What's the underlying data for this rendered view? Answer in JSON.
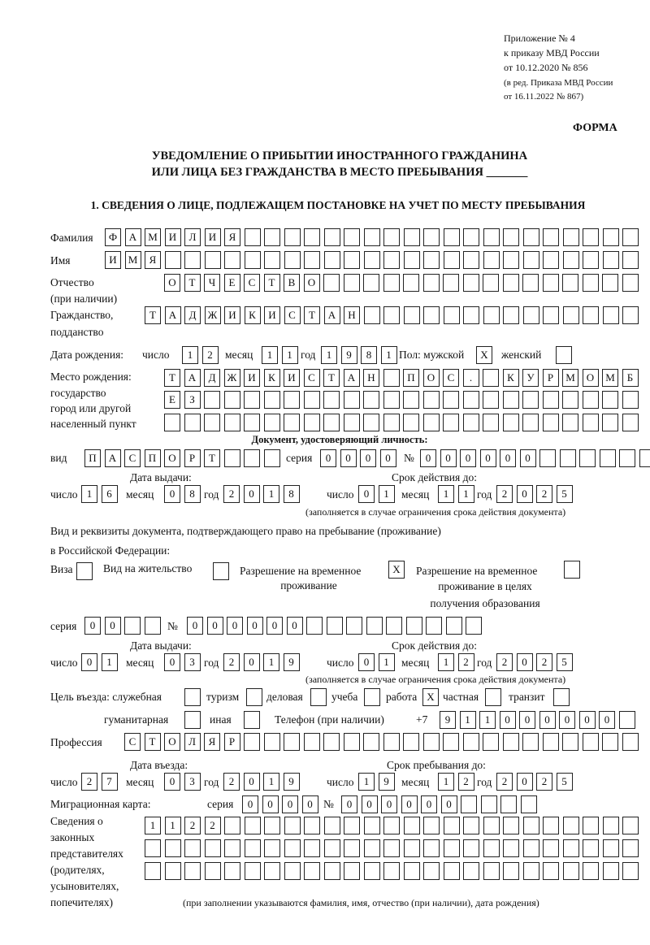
{
  "header": {
    "appendix": "Приложение № 4",
    "order": "к приказу МВД России",
    "order_date": "от 10.12.2020 № 856",
    "edition1": "(в ред. Приказа МВД России",
    "edition2": "от 16.11.2022 № 867)",
    "form_label": "ФОРМА",
    "title1": "УВЕДОМЛЕНИЕ О ПРИБЫТИИ ИНОСТРАННОГО ГРАЖДАНИНА",
    "title2": "ИЛИ ЛИЦА БЕЗ ГРАЖДАНСТВА В МЕСТО ПРЕБЫВАНИЯ _______",
    "section1": "1. СВЕДЕНИЯ О ЛИЦЕ, ПОДЛЕЖАЩЕМ ПОСТАНОВКЕ НА УЧЕТ ПО МЕСТУ ПРЕБЫВАНИЯ"
  },
  "person": {
    "surname": {
      "label": "Фамилия",
      "chars": [
        "Ф",
        "А",
        "М",
        "И",
        "Л",
        "И",
        "Я",
        "",
        "",
        "",
        "",
        "",
        "",
        "",
        "",
        "",
        "",
        "",
        "",
        "",
        "",
        "",
        "",
        "",
        "",
        "",
        ""
      ]
    },
    "name": {
      "label": "Имя",
      "chars": [
        "И",
        "М",
        "Я",
        "",
        "",
        "",
        "",
        "",
        "",
        "",
        "",
        "",
        "",
        "",
        "",
        "",
        "",
        "",
        "",
        "",
        "",
        "",
        "",
        "",
        "",
        "",
        ""
      ]
    },
    "patronymic": {
      "label1": "Отчество",
      "label2": "(при наличии)",
      "chars": [
        "О",
        "Т",
        "Ч",
        "Е",
        "С",
        "Т",
        "В",
        "О",
        "",
        "",
        "",
        "",
        "",
        "",
        "",
        "",
        "",
        "",
        "",
        "",
        "",
        "",
        "",
        ""
      ]
    },
    "citizenship": {
      "label1": "Гражданство,",
      "label2": "подданство",
      "chars": [
        "Т",
        "А",
        "Д",
        "Ж",
        "И",
        "К",
        "И",
        "С",
        "Т",
        "А",
        "Н",
        "",
        "",
        "",
        "",
        "",
        "",
        "",
        "",
        "",
        "",
        "",
        "",
        "",
        ""
      ]
    },
    "birth": {
      "label": "Дата рождения:",
      "day_label": "число",
      "day": [
        "1",
        "2"
      ],
      "month_label": "месяц",
      "month": [
        "1",
        "1"
      ],
      "year_label": "год",
      "year": [
        "1",
        "9",
        "8",
        "1"
      ],
      "sex_label": "Пол: мужской",
      "male": [
        "X"
      ],
      "female_label": "женский",
      "female": [
        ""
      ]
    },
    "birthplace": {
      "label1": "Место рождения:",
      "label2": "государство",
      "label3": "город или другой",
      "label4": "населенный пункт",
      "row1": [
        "Т",
        "А",
        "Д",
        "Ж",
        "И",
        "К",
        "И",
        "С",
        "Т",
        "А",
        "Н",
        "",
        "П",
        "О",
        "С",
        ".",
        "",
        "К",
        "У",
        "Р",
        "М",
        "О",
        "М",
        "Б"
      ],
      "row2": [
        "Е",
        "З",
        "",
        "",
        "",
        "",
        "",
        "",
        "",
        "",
        "",
        "",
        "",
        "",
        "",
        "",
        "",
        "",
        "",
        "",
        "",
        "",
        "",
        ""
      ],
      "row3": [
        "",
        "",
        "",
        "",
        "",
        "",
        "",
        "",
        "",
        "",
        "",
        "",
        "",
        "",
        "",
        "",
        "",
        "",
        "",
        "",
        "",
        "",
        "",
        ""
      ]
    }
  },
  "id_doc": {
    "title": "Документ, удостоверяющий личность:",
    "kind_label": "вид",
    "kind": [
      "П",
      "А",
      "С",
      "П",
      "О",
      "Р",
      "Т",
      "",
      "",
      ""
    ],
    "series_label": "серия",
    "series": [
      "0",
      "0",
      "0",
      "0"
    ],
    "number_label": "№",
    "number": [
      "0",
      "0",
      "0",
      "0",
      "0",
      "0",
      "",
      "",
      "",
      "",
      "",
      ""
    ],
    "issue_label": "Дата выдачи:",
    "valid_label": "Срок действия до:",
    "day_label": "число",
    "month_label": "месяц",
    "year_label": "год",
    "issue_day": [
      "1",
      "6"
    ],
    "issue_month": [
      "0",
      "8"
    ],
    "issue_year": [
      "2",
      "0",
      "1",
      "8"
    ],
    "valid_day": [
      "0",
      "1"
    ],
    "valid_month": [
      "1",
      "1"
    ],
    "valid_year": [
      "2",
      "0",
      "2",
      "5"
    ],
    "note": "(заполняется в случае ограничения срока действия документа)"
  },
  "stay_doc": {
    "title1": "Вид и реквизиты документа, подтверждающего право на пребывание (проживание)",
    "title2": "в Российской Федерации:",
    "visa_label": "Виза",
    "visa": [
      ""
    ],
    "residence_label": "Вид на жительство",
    "residence": [
      ""
    ],
    "temp_label1": "Разрешение на временное",
    "temp_label2": "проживание",
    "temp": [
      "X"
    ],
    "edu_label1": "Разрешение на временное",
    "edu_label2": "проживание в целях",
    "edu_label3": "получения образования",
    "edu": [
      ""
    ],
    "series_label": "серия",
    "series": [
      "0",
      "0",
      "",
      ""
    ],
    "number_label": "№",
    "number": [
      "0",
      "0",
      "0",
      "0",
      "0",
      "0",
      "",
      "",
      "",
      "",
      "",
      "",
      "",
      "",
      ""
    ],
    "issue_label": "Дата выдачи:",
    "valid_label": "Срок действия до:",
    "day_label": "число",
    "month_label": "месяц",
    "year_label": "год",
    "issue_day": [
      "0",
      "1"
    ],
    "issue_month": [
      "0",
      "3"
    ],
    "issue_year": [
      "2",
      "0",
      "1",
      "9"
    ],
    "valid_day": [
      "0",
      "1"
    ],
    "valid_month": [
      "1",
      "2"
    ],
    "valid_year": [
      "2",
      "0",
      "2",
      "5"
    ],
    "note": "(заполняется в случае ограничения срока действия документа)"
  },
  "purpose": {
    "label": "Цель въезда: служебная",
    "service": [
      ""
    ],
    "tourism_label": "туризм",
    "tourism": [
      ""
    ],
    "business_label": "деловая",
    "business": [
      ""
    ],
    "study_label": "учеба",
    "study": [
      ""
    ],
    "work_label": "работа",
    "work": [
      "X"
    ],
    "private_label": "частная",
    "private": [
      ""
    ],
    "transit_label": "транзит",
    "transit": [
      ""
    ],
    "humanitarian_label": "гуманитарная",
    "humanitarian": [
      ""
    ],
    "other_label": "иная",
    "other": [
      ""
    ],
    "phone_label": "Телефон (при наличии)",
    "phone_prefix": "+7",
    "phone": [
      "9",
      "1",
      "1",
      "0",
      "0",
      "0",
      "0",
      "0",
      "0",
      ""
    ]
  },
  "profession": {
    "label": "Профессия",
    "chars": [
      "С",
      "Т",
      "О",
      "Л",
      "Я",
      "Р",
      "",
      "",
      "",
      "",
      "",
      "",
      "",
      "",
      "",
      "",
      "",
      "",
      "",
      "",
      "",
      "",
      "",
      "",
      "",
      ""
    ]
  },
  "entry": {
    "entry_label": "Дата въезда:",
    "stay_label": "Срок пребывания до:",
    "day_label": "число",
    "month_label": "месяц",
    "year_label": "год",
    "entry_day": [
      "2",
      "7"
    ],
    "entry_month": [
      "0",
      "3"
    ],
    "entry_year": [
      "2",
      "0",
      "1",
      "9"
    ],
    "stay_day": [
      "1",
      "9"
    ],
    "stay_month": [
      "1",
      "2"
    ],
    "stay_year": [
      "2",
      "0",
      "2",
      "5"
    ]
  },
  "migration_card": {
    "label": "Миграционная карта:",
    "series_label": "серия",
    "series": [
      "0",
      "0",
      "0",
      "0"
    ],
    "number_label": "№",
    "number": [
      "0",
      "0",
      "0",
      "0",
      "0",
      "0",
      "",
      "",
      "",
      ""
    ]
  },
  "representatives": {
    "label1": "Сведения о",
    "label2": "законных",
    "label3": "представителях",
    "label4": "(родителях,",
    "label5": "усыновителях,",
    "label6": "попечителях)",
    "row1": [
      "1",
      "1",
      "2",
      "2",
      "",
      "",
      "",
      "",
      "",
      "",
      "",
      "",
      "",
      "",
      "",
      "",
      "",
      "",
      "",
      "",
      "",
      "",
      "",
      "",
      ""
    ],
    "row2": [
      "",
      "",
      "",
      "",
      "",
      "",
      "",
      "",
      "",
      "",
      "",
      "",
      "",
      "",
      "",
      "",
      "",
      "",
      "",
      "",
      "",
      "",
      "",
      "",
      ""
    ],
    "row3": [
      "",
      "",
      "",
      "",
      "",
      "",
      "",
      "",
      "",
      "",
      "",
      "",
      "",
      "",
      "",
      "",
      "",
      "",
      "",
      "",
      "",
      "",
      "",
      "",
      ""
    ],
    "note": "(при заполнении указываются фамилия, имя, отчество (при наличии), дата рождения)"
  }
}
